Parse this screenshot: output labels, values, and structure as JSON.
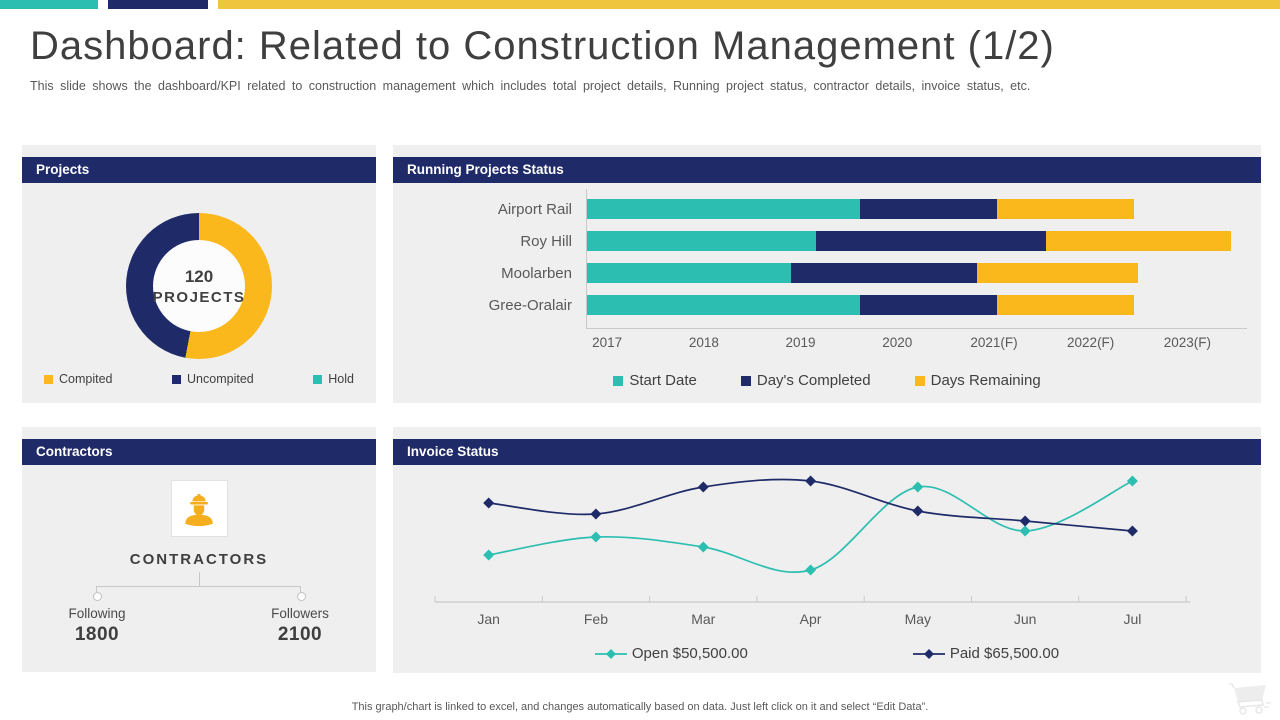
{
  "slide": {
    "title": "Dashboard: Related to Construction Management (1/2)",
    "subtitle": "This slide shows the dashboard/KPI related to construction management which includes total project details, Running project status, contractor details, invoice status, etc.",
    "footer": "This graph/chart is linked to excel, and changes automatically based on data. Just left click on it and select “Edit Data”."
  },
  "colors": {
    "teal": "#2CBFB1",
    "navy": "#1F2A68",
    "yellow": "#FAB81D",
    "topbar_yellow": "#EFC53E",
    "panel_bg": "#EFEFEF",
    "text_dark": "#404040",
    "text_mid": "#595959",
    "axis_gray": "#C9C9C9"
  },
  "panels": {
    "projects": {
      "header": "Projects",
      "center_value": "120",
      "center_label": "PROJECTS"
    },
    "running": {
      "header": "Running Projects Status"
    },
    "contractors": {
      "header": "Contractors",
      "icon": "construction-worker-icon",
      "label": "CONTRACTORS",
      "stats": [
        {
          "label": "Following",
          "value": "1800"
        },
        {
          "label": "Followers",
          "value": "2100"
        }
      ]
    },
    "invoice": {
      "header": "Invoice Status"
    }
  },
  "chart_data": [
    {
      "id": "projects-donut",
      "type": "pie",
      "donut": true,
      "title": "Projects",
      "center_label": "120 PROJECTS",
      "categories": [
        "Compited",
        "Uncompited",
        "Hold"
      ],
      "values": [
        53,
        47,
        0
      ],
      "colors": [
        "#FAB81D",
        "#1F2A68",
        "#2CBFB1"
      ],
      "legend_position": "bottom"
    },
    {
      "id": "running-projects-status",
      "type": "bar",
      "orientation": "horizontal",
      "stacked": true,
      "title": "Running Projects Status",
      "categories": [
        "Airport Rail",
        "Roy Hill",
        "Moolarben",
        "Gree-Oralair"
      ],
      "series": [
        {
          "name": "Start Date",
          "color": "#2CBFB1",
          "values": [
            2.8,
            2.35,
            2.1,
            2.8
          ]
        },
        {
          "name": "Day's Completed",
          "color": "#1F2A68",
          "values": [
            1.4,
            2.35,
            1.9,
            1.4
          ]
        },
        {
          "name": "Days Remaining",
          "color": "#FAB81D",
          "values": [
            1.4,
            1.9,
            1.65,
            1.4
          ]
        }
      ],
      "x_tick_labels": [
        "2017",
        "2018",
        "2019",
        "2020",
        "2021(F)",
        "2022(F)",
        "2023(F)"
      ],
      "x_axis_span": 6.76,
      "unit": "years from 2017 (estimated from axis)",
      "legend_position": "bottom"
    },
    {
      "id": "invoice-status",
      "type": "line",
      "title": "Invoice Status",
      "smooth": true,
      "marker": "diamond",
      "x": [
        "Jan",
        "Feb",
        "Mar",
        "Apr",
        "May",
        "Jun",
        "Jul"
      ],
      "series": [
        {
          "name": "Open $50,500.00",
          "color": "#2CBFB1",
          "values": [
            47,
            65,
            55,
            32,
            115,
            71,
            121
          ]
        },
        {
          "name": "Paid $65,500.00",
          "color": "#1F2A68",
          "values": [
            99,
            88,
            115,
            121,
            91,
            81,
            71
          ]
        }
      ],
      "ylim": [
        0,
        140
      ],
      "unit": "relative height (value axis not labeled)",
      "legend_position": "bottom"
    }
  ]
}
